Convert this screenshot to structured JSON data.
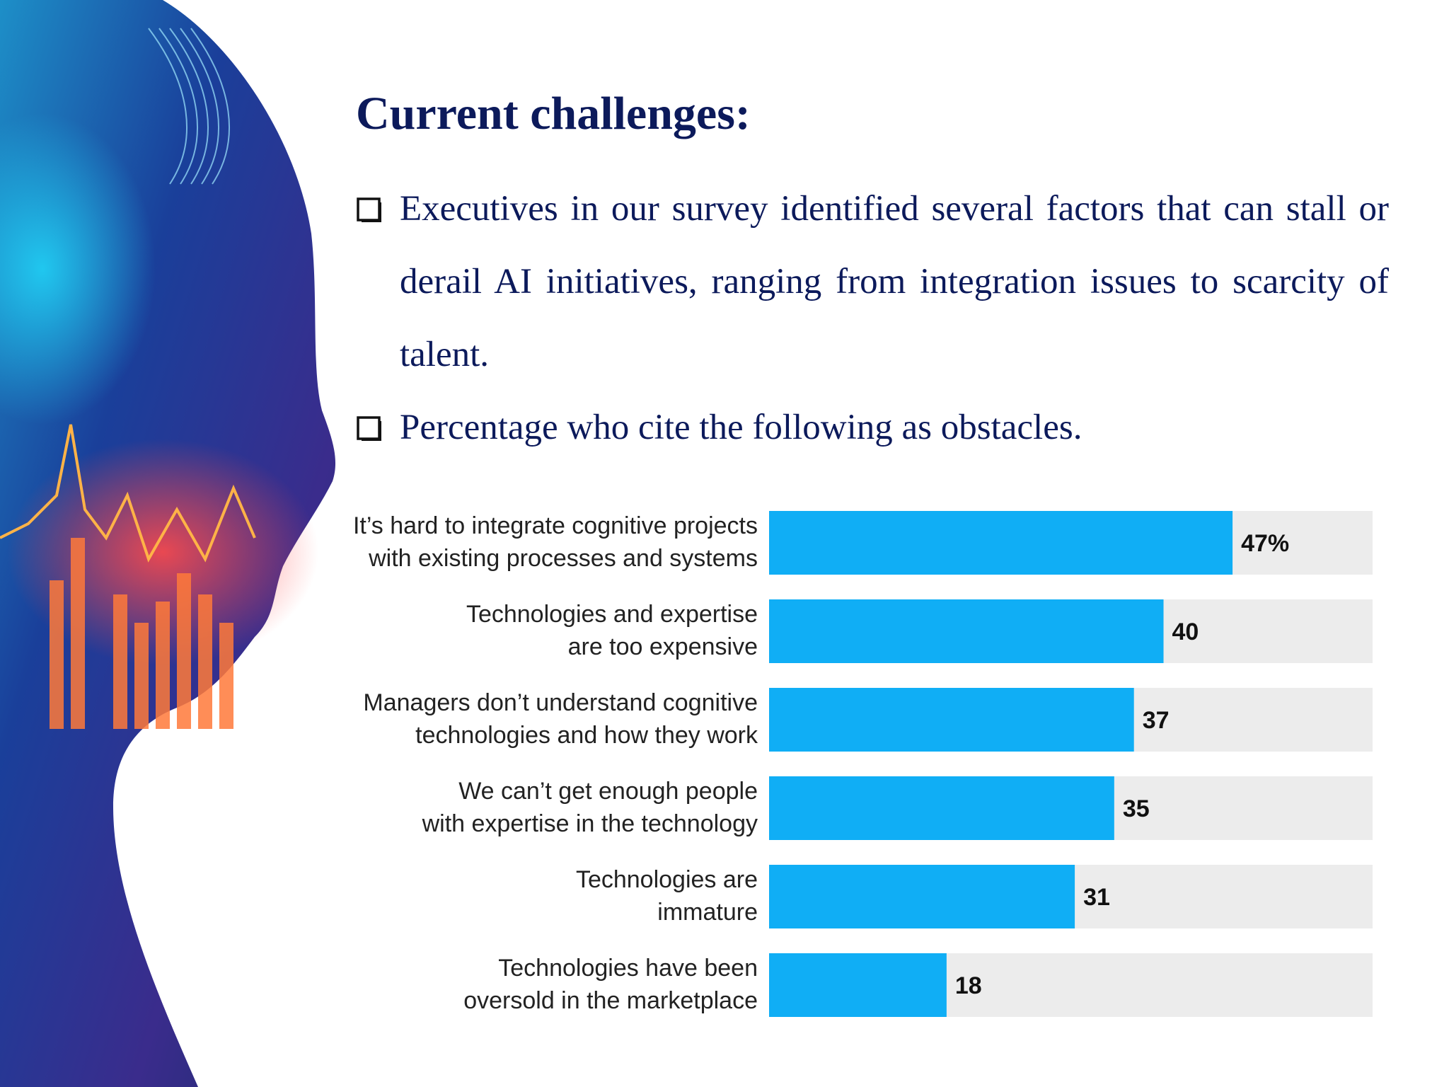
{
  "slide": {
    "title": "Current challenges:",
    "bullets": [
      "Executives in our survey identified several factors that can stall or derail AI initiatives, ranging from integration issues to scarcity of talent.",
      "Percentage who cite the following as obstacles."
    ]
  },
  "colors": {
    "title": "#0c1a5b",
    "bar": "#10aef5",
    "track": "#ececec"
  },
  "chart_data": {
    "type": "bar",
    "orientation": "horizontal",
    "categories": [
      [
        "It’s hard to integrate cognitive projects",
        "with existing processes and systems"
      ],
      [
        "Technologies and expertise",
        "are too expensive"
      ],
      [
        "Managers don’t understand cognitive",
        "technologies and how they work"
      ],
      [
        "We can’t get enough people",
        "with expertise in the technology"
      ],
      [
        "Technologies are",
        "immature"
      ],
      [
        "Technologies have been",
        "oversold in the marketplace"
      ]
    ],
    "values": [
      47,
      40,
      37,
      35,
      31,
      18
    ],
    "value_labels": [
      "47%",
      "40",
      "37",
      "35",
      "31",
      "18"
    ],
    "xlim": [
      0,
      100
    ],
    "grid": false,
    "legend": "none"
  }
}
